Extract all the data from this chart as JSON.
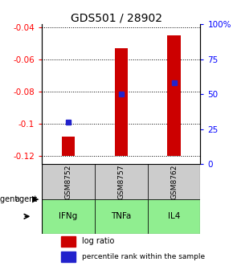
{
  "title": "GDS501 / 28902",
  "samples": [
    "GSM8752",
    "GSM8757",
    "GSM8762"
  ],
  "agents": [
    "IFNg",
    "TNFa",
    "IL4"
  ],
  "log_ratios": [
    -0.108,
    -0.053,
    -0.045
  ],
  "baseline": -0.12,
  "percentile_ranks": [
    30,
    50,
    58
  ],
  "ylim_left": [
    -0.125,
    -0.038
  ],
  "yticks_left": [
    -0.12,
    -0.1,
    -0.08,
    -0.06,
    -0.04
  ],
  "ytick_labels_left": [
    "-0.12",
    "-0.1",
    "-0.08",
    "-0.06",
    "-0.04"
  ],
  "yticks_right": [
    0,
    25,
    50,
    75,
    100
  ],
  "ylim_right": [
    0,
    100
  ],
  "bar_color": "#cc0000",
  "percentile_color": "#2222cc",
  "sample_bg_color": "#cccccc",
  "agent_bg_color": "#90ee90",
  "legend_log_color": "#cc0000",
  "legend_pct_color": "#2222cc",
  "title_fontsize": 10,
  "tick_fontsize": 7.5,
  "bar_width": 0.25
}
